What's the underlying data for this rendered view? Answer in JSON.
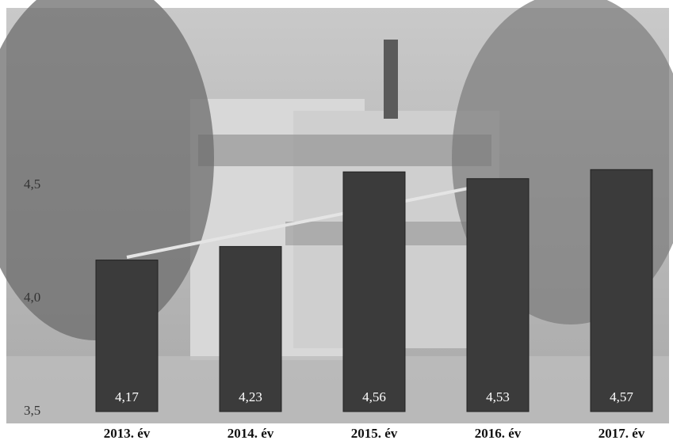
{
  "chart_data": {
    "type": "bar",
    "categories": [
      "2013. év",
      "2014. év",
      "2015. év",
      "2016. év",
      "2017. év"
    ],
    "values": [
      4.17,
      4.23,
      4.56,
      4.53,
      4.57
    ],
    "value_labels": [
      "4,17",
      "4,23",
      "4,56",
      "4,53",
      "4,57"
    ],
    "color": "#3b3b3b",
    "ylim": [
      3.5,
      5.25
    ],
    "yticks": [
      {
        "value": 3.5,
        "label": "3,5"
      },
      {
        "value": 4.0,
        "label": "4,0"
      },
      {
        "value": 4.5,
        "label": "4,5"
      }
    ],
    "grid": false
  }
}
